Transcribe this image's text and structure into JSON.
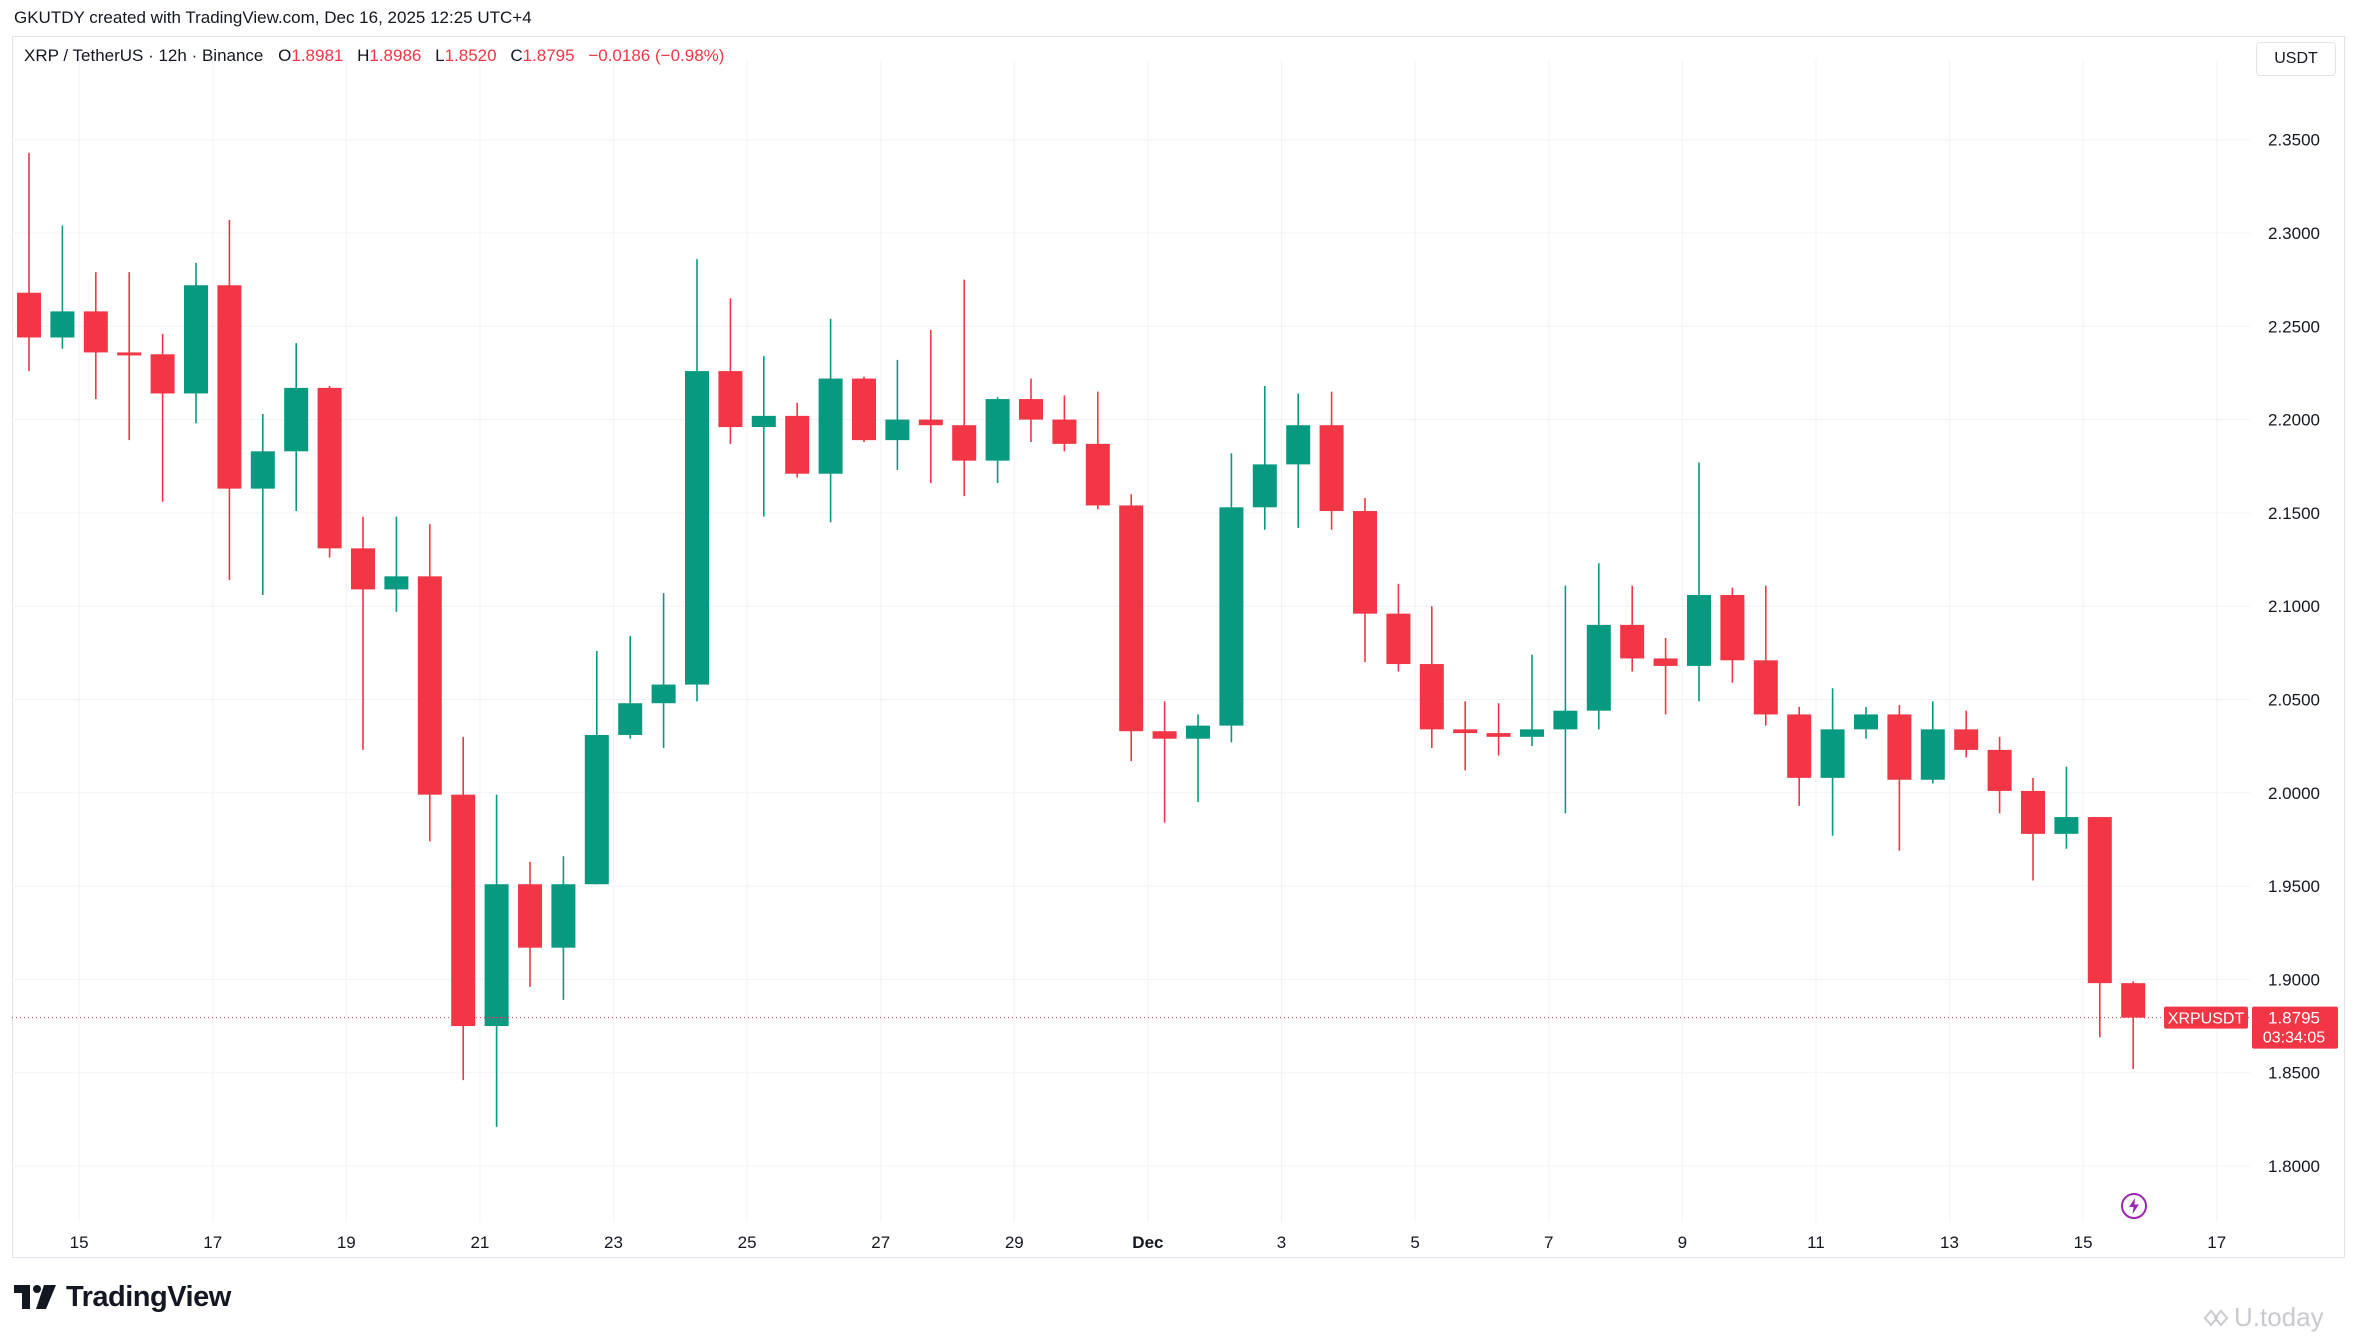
{
  "header": {
    "credit": "GKUTDY created with TradingView.com, Dec 16, 2025 12:25 UTC+4"
  },
  "legend": {
    "symbol": "XRP / TetherUS · 12h · Binance",
    "o_label": "O",
    "o_value": "1.8981",
    "h_label": "H",
    "h_value": "1.8986",
    "l_label": "L",
    "l_value": "1.8520",
    "c_label": "C",
    "c_value": "1.8795",
    "change": "−0.0186 (−0.98%)"
  },
  "currency_button": "USDT",
  "price_tag": {
    "symbol": "XRPUSDT",
    "price": "1.8795",
    "countdown": "03:34:05"
  },
  "brand": {
    "name": "TradingView"
  },
  "watermark": {
    "text": "U.today"
  },
  "colors": {
    "up": "#089981",
    "down": "#f23645",
    "grid": "#f0f3fa",
    "text": "#131722"
  },
  "icons": {
    "flash": "lightning-bolt-icon",
    "logo": "tradingview-logo-icon"
  },
  "chart_data": {
    "type": "candlestick",
    "interval": "12h",
    "y_ticks": [
      "2.3500",
      "2.3000",
      "2.2500",
      "2.2000",
      "2.1500",
      "2.1000",
      "2.0500",
      "2.0000",
      "1.9500",
      "1.9000",
      "1.8500",
      "1.8000"
    ],
    "ylim": [
      1.79,
      2.36
    ],
    "x_ticks": [
      {
        "label": "15",
        "index": 1.5
      },
      {
        "label": "17",
        "index": 5.5
      },
      {
        "label": "19",
        "index": 9.5
      },
      {
        "label": "21",
        "index": 13.5
      },
      {
        "label": "23",
        "index": 17.5
      },
      {
        "label": "25",
        "index": 21.5
      },
      {
        "label": "27",
        "index": 25.5
      },
      {
        "label": "29",
        "index": 29.5
      },
      {
        "label": "Dec",
        "index": 33.5,
        "bold": true
      },
      {
        "label": "3",
        "index": 37.5
      },
      {
        "label": "5",
        "index": 41.5
      },
      {
        "label": "7",
        "index": 45.5
      },
      {
        "label": "9",
        "index": 49.5
      },
      {
        "label": "11",
        "index": 53.5
      },
      {
        "label": "13",
        "index": 57.5
      },
      {
        "label": "15",
        "index": 61.5
      },
      {
        "label": "17",
        "index": 65.5
      }
    ],
    "candles": [
      {
        "o": 2.268,
        "h": 2.343,
        "l": 2.226,
        "c": 2.244
      },
      {
        "o": 2.244,
        "h": 2.304,
        "l": 2.238,
        "c": 2.258
      },
      {
        "o": 2.258,
        "h": 2.279,
        "l": 2.211,
        "c": 2.236
      },
      {
        "o": 2.236,
        "h": 2.279,
        "l": 2.189,
        "c": 2.235
      },
      {
        "o": 2.235,
        "h": 2.246,
        "l": 2.156,
        "c": 2.214
      },
      {
        "o": 2.214,
        "h": 2.284,
        "l": 2.198,
        "c": 2.272
      },
      {
        "o": 2.272,
        "h": 2.307,
        "l": 2.114,
        "c": 2.163
      },
      {
        "o": 2.163,
        "h": 2.203,
        "l": 2.106,
        "c": 2.183
      },
      {
        "o": 2.183,
        "h": 2.241,
        "l": 2.151,
        "c": 2.217
      },
      {
        "o": 2.217,
        "h": 2.218,
        "l": 2.126,
        "c": 2.131
      },
      {
        "o": 2.131,
        "h": 2.148,
        "l": 2.023,
        "c": 2.109
      },
      {
        "o": 2.109,
        "h": 2.148,
        "l": 2.097,
        "c": 2.116
      },
      {
        "o": 2.116,
        "h": 2.144,
        "l": 1.974,
        "c": 1.999
      },
      {
        "o": 1.999,
        "h": 2.03,
        "l": 1.846,
        "c": 1.875
      },
      {
        "o": 1.875,
        "h": 1.999,
        "l": 1.821,
        "c": 1.951
      },
      {
        "o": 1.951,
        "h": 1.963,
        "l": 1.896,
        "c": 1.917
      },
      {
        "o": 1.917,
        "h": 1.966,
        "l": 1.889,
        "c": 1.951
      },
      {
        "o": 1.951,
        "h": 2.076,
        "l": 1.951,
        "c": 2.031
      },
      {
        "o": 2.031,
        "h": 2.084,
        "l": 2.029,
        "c": 2.048
      },
      {
        "o": 2.048,
        "h": 2.107,
        "l": 2.024,
        "c": 2.058
      },
      {
        "o": 2.058,
        "h": 2.286,
        "l": 2.049,
        "c": 2.226
      },
      {
        "o": 2.226,
        "h": 2.265,
        "l": 2.187,
        "c": 2.196
      },
      {
        "o": 2.196,
        "h": 2.234,
        "l": 2.148,
        "c": 2.202
      },
      {
        "o": 2.202,
        "h": 2.209,
        "l": 2.169,
        "c": 2.171
      },
      {
        "o": 2.171,
        "h": 2.254,
        "l": 2.145,
        "c": 2.222
      },
      {
        "o": 2.222,
        "h": 2.223,
        "l": 2.188,
        "c": 2.189
      },
      {
        "o": 2.189,
        "h": 2.232,
        "l": 2.173,
        "c": 2.2
      },
      {
        "o": 2.2,
        "h": 2.248,
        "l": 2.166,
        "c": 2.197
      },
      {
        "o": 2.197,
        "h": 2.275,
        "l": 2.159,
        "c": 2.178
      },
      {
        "o": 2.178,
        "h": 2.212,
        "l": 2.166,
        "c": 2.211
      },
      {
        "o": 2.211,
        "h": 2.222,
        "l": 2.188,
        "c": 2.2
      },
      {
        "o": 2.2,
        "h": 2.213,
        "l": 2.183,
        "c": 2.187
      },
      {
        "o": 2.187,
        "h": 2.215,
        "l": 2.152,
        "c": 2.154
      },
      {
        "o": 2.154,
        "h": 2.16,
        "l": 2.017,
        "c": 2.033
      },
      {
        "o": 2.033,
        "h": 2.049,
        "l": 1.984,
        "c": 2.029
      },
      {
        "o": 2.029,
        "h": 2.042,
        "l": 1.995,
        "c": 2.036
      },
      {
        "o": 2.036,
        "h": 2.182,
        "l": 2.027,
        "c": 2.153
      },
      {
        "o": 2.153,
        "h": 2.218,
        "l": 2.141,
        "c": 2.176
      },
      {
        "o": 2.176,
        "h": 2.214,
        "l": 2.142,
        "c": 2.197
      },
      {
        "o": 2.197,
        "h": 2.215,
        "l": 2.141,
        "c": 2.151
      },
      {
        "o": 2.151,
        "h": 2.158,
        "l": 2.07,
        "c": 2.096
      },
      {
        "o": 2.096,
        "h": 2.112,
        "l": 2.065,
        "c": 2.069
      },
      {
        "o": 2.069,
        "h": 2.1,
        "l": 2.024,
        "c": 2.034
      },
      {
        "o": 2.034,
        "h": 2.049,
        "l": 2.012,
        "c": 2.032
      },
      {
        "o": 2.032,
        "h": 2.048,
        "l": 2.02,
        "c": 2.03
      },
      {
        "o": 2.03,
        "h": 2.074,
        "l": 2.025,
        "c": 2.034
      },
      {
        "o": 2.034,
        "h": 2.111,
        "l": 1.989,
        "c": 2.044
      },
      {
        "o": 2.044,
        "h": 2.123,
        "l": 2.034,
        "c": 2.09
      },
      {
        "o": 2.09,
        "h": 2.111,
        "l": 2.065,
        "c": 2.072
      },
      {
        "o": 2.072,
        "h": 2.083,
        "l": 2.042,
        "c": 2.068
      },
      {
        "o": 2.068,
        "h": 2.177,
        "l": 2.049,
        "c": 2.106
      },
      {
        "o": 2.106,
        "h": 2.11,
        "l": 2.059,
        "c": 2.071
      },
      {
        "o": 2.071,
        "h": 2.111,
        "l": 2.036,
        "c": 2.042
      },
      {
        "o": 2.042,
        "h": 2.046,
        "l": 1.993,
        "c": 2.008
      },
      {
        "o": 2.008,
        "h": 2.056,
        "l": 1.977,
        "c": 2.034
      },
      {
        "o": 2.034,
        "h": 2.046,
        "l": 2.029,
        "c": 2.042
      },
      {
        "o": 2.042,
        "h": 2.047,
        "l": 1.969,
        "c": 2.007
      },
      {
        "o": 2.007,
        "h": 2.049,
        "l": 2.005,
        "c": 2.034
      },
      {
        "o": 2.034,
        "h": 2.044,
        "l": 2.019,
        "c": 2.023
      },
      {
        "o": 2.023,
        "h": 2.03,
        "l": 1.989,
        "c": 2.001
      },
      {
        "o": 2.001,
        "h": 2.008,
        "l": 1.953,
        "c": 1.978
      },
      {
        "o": 1.978,
        "h": 2.014,
        "l": 1.97,
        "c": 1.987
      },
      {
        "o": 1.987,
        "h": 1.987,
        "l": 1.869,
        "c": 1.898
      },
      {
        "o": 1.898,
        "h": 1.899,
        "l": 1.852,
        "c": 1.8795
      }
    ]
  }
}
